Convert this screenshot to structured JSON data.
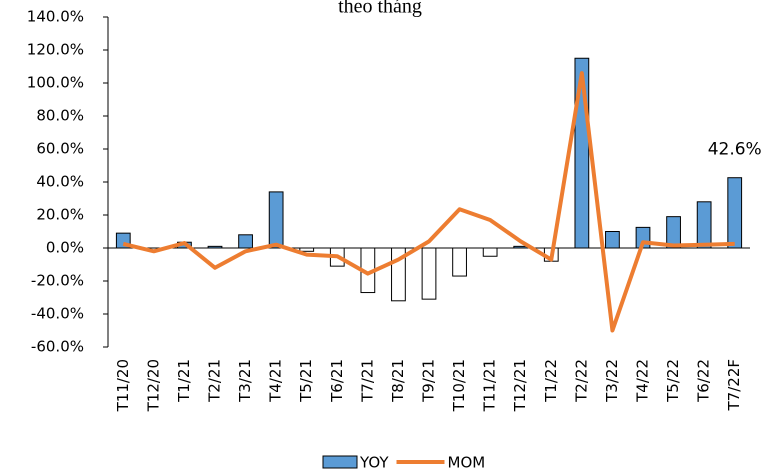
{
  "chart_data": {
    "type": "bar_line",
    "title": "theo tháng",
    "categories": [
      "T11/20",
      "T12/20",
      "T1/21",
      "T2/21",
      "T3/21",
      "T4/21",
      "T5/21",
      "T6/21",
      "T7/21",
      "T8/21",
      "T9/21",
      "T10/21",
      "T11/21",
      "T12/21",
      "T1/22",
      "T2/22",
      "T3/22",
      "T4/22",
      "T5/22",
      "T6/22",
      "T7/22F"
    ],
    "series": [
      {
        "name": "YOY",
        "type": "bar",
        "color": "#5b9bd5",
        "negative_color": "#ffffff",
        "values": [
          9,
          0,
          3.5,
          1,
          8,
          34,
          -2,
          -11,
          -27,
          -32,
          -31,
          -17,
          -5,
          1,
          -8,
          115,
          10,
          12.5,
          19,
          28,
          42.6
        ],
        "value_labels": [
          null,
          null,
          null,
          null,
          null,
          null,
          null,
          null,
          null,
          null,
          null,
          null,
          null,
          null,
          null,
          null,
          null,
          null,
          null,
          null,
          "42.6%"
        ]
      },
      {
        "name": "MOM",
        "type": "line",
        "color": "#ed7d31",
        "values": [
          2.5,
          -2,
          3,
          -12,
          -2,
          2,
          -4,
          -5,
          -15.5,
          -7,
          4,
          23.5,
          17,
          4,
          -7,
          106,
          -50,
          3.5,
          1.5,
          2,
          2.5
        ]
      }
    ],
    "ylim": [
      -60,
      140
    ],
    "yticks": [
      {
        "value": -60,
        "label": "-60.0%"
      },
      {
        "value": -40,
        "label": "-40.0%"
      },
      {
        "value": -20,
        "label": "-20.0%"
      },
      {
        "value": 0,
        "label": "0.0%"
      },
      {
        "value": 20,
        "label": "20.0%"
      },
      {
        "value": 40,
        "label": "40.0%"
      },
      {
        "value": 60,
        "label": "60.0%"
      },
      {
        "value": 80,
        "label": "80.0%"
      },
      {
        "value": 100,
        "label": "100.0%"
      },
      {
        "value": 120,
        "label": "120.0%"
      },
      {
        "value": 140,
        "label": "140.0%"
      }
    ],
    "grid": false,
    "legend": "bottom"
  }
}
